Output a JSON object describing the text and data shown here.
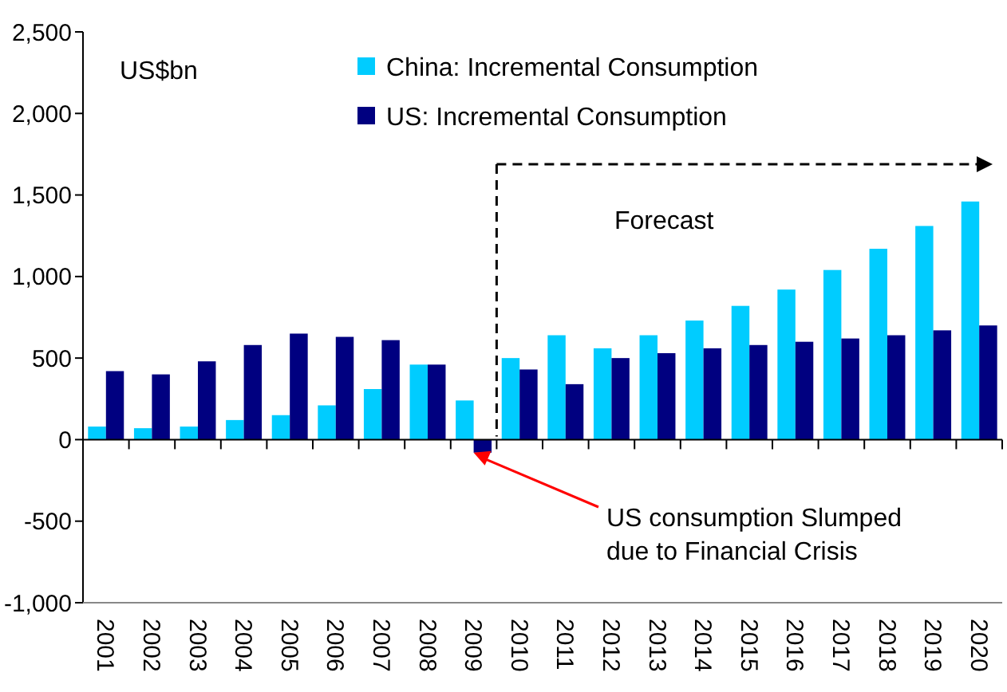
{
  "chart_data": {
    "type": "bar",
    "categories": [
      "2001",
      "2002",
      "2003",
      "2004",
      "2005",
      "2006",
      "2007",
      "2008",
      "2009",
      "2010",
      "2011",
      "2012",
      "2013",
      "2014",
      "2015",
      "2016",
      "2017",
      "2018",
      "2019",
      "2020"
    ],
    "series": [
      {
        "name": "China: Incremental Consumption",
        "color": "#00ccff",
        "values": [
          80,
          70,
          80,
          120,
          150,
          210,
          310,
          460,
          240,
          500,
          640,
          560,
          640,
          730,
          820,
          920,
          1040,
          1170,
          1310,
          1460
        ]
      },
      {
        "name": "US: Incremental Consumption",
        "color": "#000080",
        "values": [
          420,
          400,
          480,
          580,
          650,
          630,
          610,
          460,
          -80,
          430,
          340,
          500,
          530,
          560,
          580,
          600,
          620,
          640,
          670,
          700
        ]
      }
    ],
    "ylim": [
      -1000,
      2500
    ],
    "yticks": [
      {
        "value": -1000,
        "label": "-1,000"
      },
      {
        "value": -500,
        "label": "-500"
      },
      0,
      500,
      {
        "value": 1000,
        "label": "1,000"
      },
      {
        "value": 1500,
        "label": "1,500"
      },
      {
        "value": 2000,
        "label": "2,000"
      },
      {
        "value": 2500,
        "label": "2,500"
      }
    ],
    "legend": "top",
    "annotations": [
      "US$bn",
      "Forecast",
      {
        "text": "US consumption Slumped\ndue to Financial Crisis",
        "x": "2009",
        "y": -80
      }
    ]
  }
}
